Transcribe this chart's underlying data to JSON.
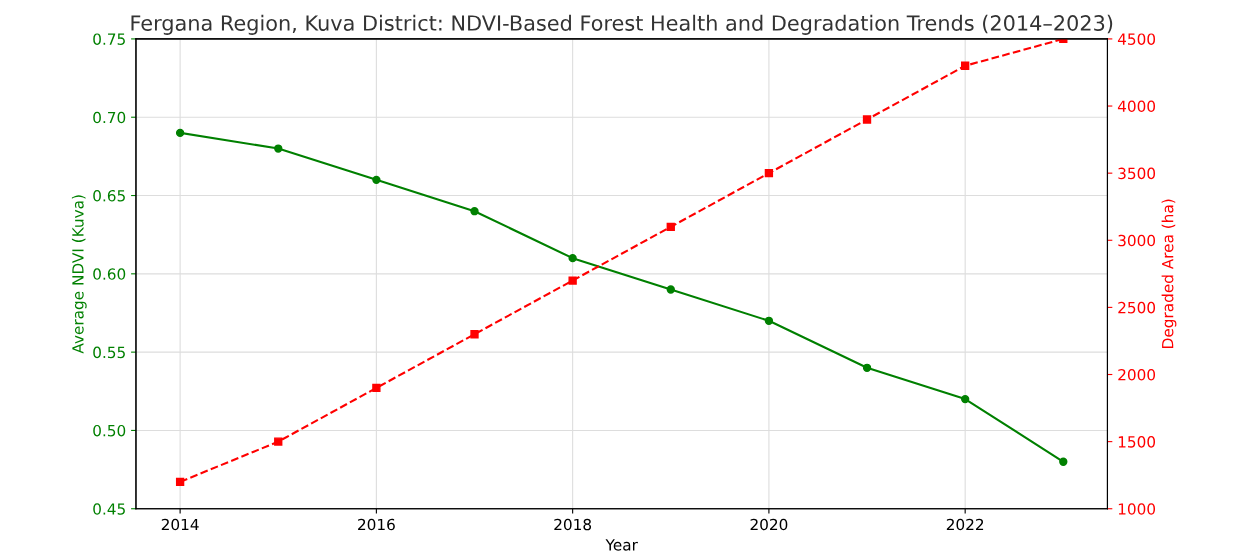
{
  "chart_data": {
    "type": "line",
    "title": "Fergana Region, Kuva District: NDVI-Based Forest Health and Degradation Trends (2014–2023)",
    "xlabel": "Year",
    "ylabel": "Average NDVI (Kuva)",
    "y2label": "Degraded Area (ha)",
    "x": [
      2014,
      2015,
      2016,
      2017,
      2018,
      2019,
      2020,
      2021,
      2022,
      2023
    ],
    "series": [
      {
        "color": "#008000",
        "marker": "circle",
        "line_style": "solid",
        "values": [
          0.69,
          0.68,
          0.66,
          0.64,
          0.61,
          0.59,
          0.57,
          0.54,
          0.52,
          0.48
        ]
      },
      {
        "color": "#ff0000",
        "marker": "square",
        "line_style": "dashed",
        "axis": "y2",
        "values": [
          1200,
          1500,
          1900,
          2300,
          2700,
          3100,
          3500,
          3900,
          4300,
          4500
        ]
      }
    ],
    "xlim": [
      2013.55,
      2023.45
    ],
    "xticks": [
      2014,
      2016,
      2018,
      2020,
      2022
    ],
    "ylim": [
      0.45,
      0.75
    ],
    "yticks": [
      {
        "value": 0.45,
        "label": "0.45"
      },
      {
        "value": 0.5,
        "label": "0.50"
      },
      {
        "value": 0.55,
        "label": "0.55"
      },
      {
        "value": 0.6,
        "label": "0.60"
      },
      {
        "value": 0.65,
        "label": "0.65"
      },
      {
        "value": 0.7,
        "label": "0.70"
      },
      {
        "value": 0.75,
        "label": "0.75"
      }
    ],
    "y2lim": [
      1000,
      4500
    ],
    "y2ticks": [
      1000,
      1500,
      2000,
      2500,
      3000,
      3500,
      4000,
      4500
    ],
    "grid": true
  }
}
